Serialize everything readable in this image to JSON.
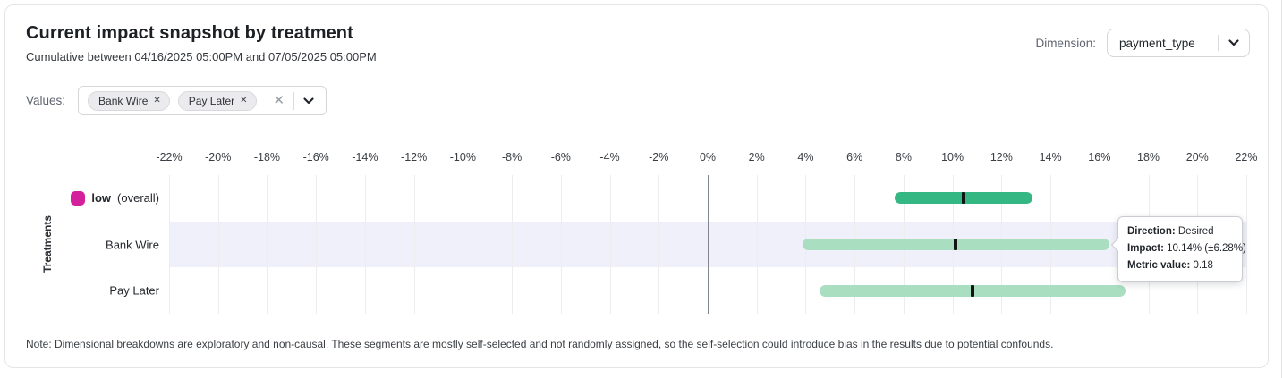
{
  "header": {
    "title": "Current impact snapshot by treatment",
    "subtitle": "Cumulative between 04/16/2025 05:00PM and 07/05/2025 05:00PM",
    "dimension_label": "Dimension:",
    "dimension_value": "payment_type"
  },
  "filters": {
    "values_label": "Values:",
    "chips": [
      {
        "label": "Bank Wire",
        "remove_icon": "✕"
      },
      {
        "label": "Pay Later",
        "remove_icon": "✕"
      }
    ],
    "clear_icon": "✕"
  },
  "chart_data": {
    "type": "bar",
    "orientation": "horizontal",
    "style": "confidence-interval range bars with black center markers",
    "title": "Current impact snapshot by treatment",
    "xlabel": "",
    "ylabel": "Treatments",
    "xlim": [
      -22,
      22
    ],
    "x_ticks": [
      -22,
      -20,
      -18,
      -16,
      -14,
      -12,
      -10,
      -8,
      -6,
      -4,
      -2,
      0,
      2,
      4,
      6,
      8,
      10,
      12,
      14,
      16,
      18,
      20,
      22
    ],
    "x_tick_labels": [
      "-22%",
      "-20%",
      "-18%",
      "-16%",
      "-14%",
      "-12%",
      "-10%",
      "-8%",
      "-6%",
      "-4%",
      "-2%",
      "0%",
      "2%",
      "4%",
      "6%",
      "8%",
      "10%",
      "12%",
      "14%",
      "16%",
      "18%",
      "20%",
      "22%"
    ],
    "grid": true,
    "categories": [
      "low (overall)",
      "Bank Wire",
      "Pay Later"
    ],
    "rows": [
      {
        "label": "low",
        "label_suffix": " (overall)",
        "label_bold": true,
        "swatch": "#d3219c",
        "center": 10.45,
        "low": 7.65,
        "high": 13.25,
        "color": "#35b783",
        "highlighted": false
      },
      {
        "label": "Bank Wire",
        "label_suffix": "",
        "label_bold": false,
        "swatch": null,
        "center": 10.14,
        "low": 3.86,
        "high": 16.42,
        "color": "#a9dec0",
        "highlighted": true
      },
      {
        "label": "Pay Later",
        "label_suffix": "",
        "label_bold": false,
        "swatch": null,
        "center": 10.82,
        "low": 4.57,
        "high": 17.07,
        "color": "#a9dec0",
        "highlighted": false
      }
    ]
  },
  "tooltip": {
    "rows": [
      {
        "label": "Direction:",
        "value": "Desired"
      },
      {
        "label": "Impact:",
        "value": "10.14% (±6.28%)"
      },
      {
        "label": "Metric value:",
        "value": "0.18"
      }
    ]
  },
  "note": "Note: Dimensional breakdowns are exploratory and non-causal. These segments are mostly self-selected and not randomly assigned, so the self-selection could introduce bias in the results due to potential confounds.",
  "colors": {
    "overall_bar": "#35b783",
    "segment_bar": "#a9dec0",
    "center_marker": "#111315",
    "legend_magenta": "#d3219c",
    "row_highlight": "#f0f0fb",
    "gridline": "#ededf0",
    "zero_line": "#82888f"
  }
}
